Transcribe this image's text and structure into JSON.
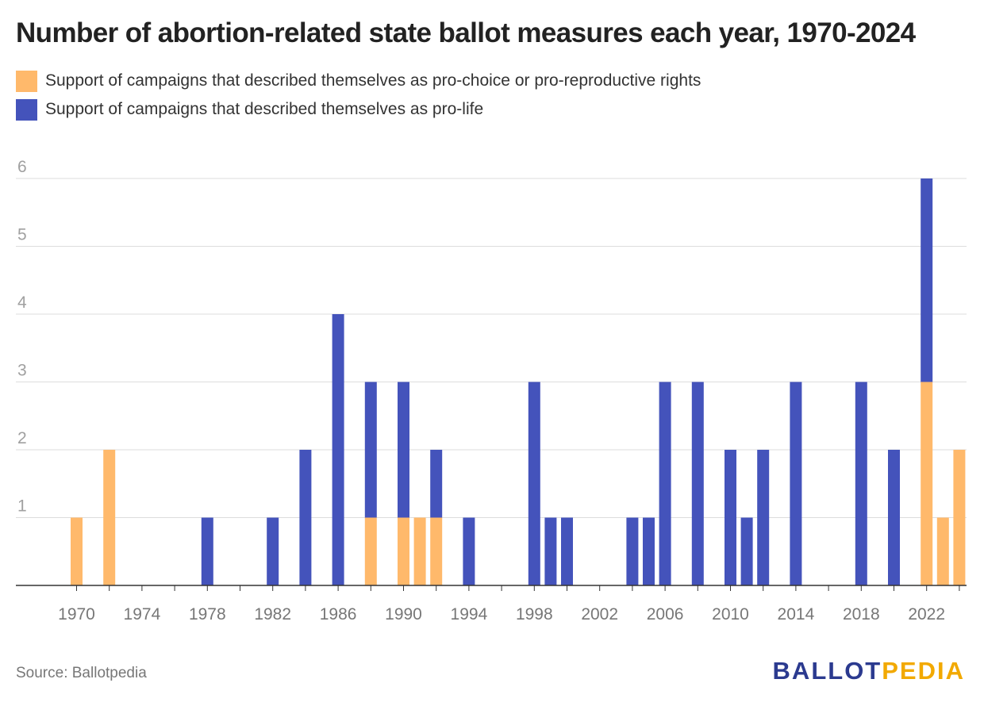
{
  "chart_data": {
    "type": "bar",
    "stacked": true,
    "title": "Number of abortion-related state ballot measures each year, 1970-2024",
    "xlabel": "",
    "ylabel": "",
    "ylim": [
      0,
      6
    ],
    "yticks": [
      "1",
      "2",
      "3",
      "4",
      "5",
      "6"
    ],
    "xticks": [
      "1970",
      "1974",
      "1978",
      "1982",
      "1986",
      "1990",
      "1994",
      "1998",
      "2002",
      "2006",
      "2010",
      "2014",
      "2018",
      "2022"
    ],
    "x_range": [
      1970,
      2024
    ],
    "categories": [
      1970,
      1972,
      1978,
      1982,
      1984,
      1986,
      1988,
      1990,
      1991,
      1992,
      1994,
      1998,
      1999,
      2000,
      2004,
      2005,
      2006,
      2008,
      2010,
      2011,
      2012,
      2014,
      2018,
      2020,
      2022,
      2023,
      2024
    ],
    "series": [
      {
        "name": "Support of campaigns that described themselves as pro-choice or pro-reproductive rights",
        "color": "#ffb96b",
        "values": [
          1,
          2,
          0,
          0,
          0,
          0,
          1,
          1,
          1,
          1,
          0,
          0,
          0,
          0,
          0,
          0,
          0,
          0,
          0,
          0,
          0,
          0,
          0,
          0,
          3,
          1,
          2
        ]
      },
      {
        "name": "Support of campaigns that described themselves as pro-life",
        "color": "#4453bb",
        "values": [
          0,
          0,
          1,
          1,
          2,
          4,
          2,
          2,
          0,
          1,
          1,
          3,
          1,
          1,
          1,
          1,
          3,
          3,
          2,
          1,
          2,
          3,
          3,
          2,
          3,
          0,
          0
        ]
      }
    ],
    "grid": true
  },
  "source": "Source: Ballotpedia",
  "logo": {
    "part1": "BALLOT",
    "part2": "PEDIA"
  }
}
